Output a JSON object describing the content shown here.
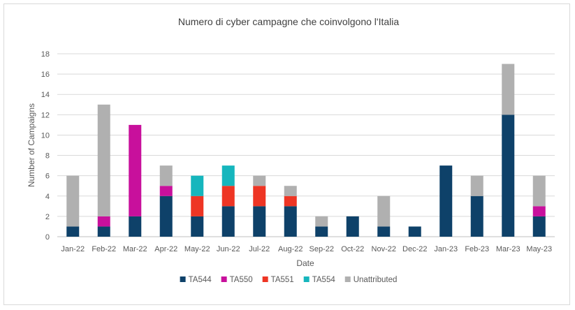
{
  "chart_data": {
    "type": "bar",
    "stacked": true,
    "title": "Numero di cyber campagne che coinvolgono l'Italia",
    "xlabel": "Date",
    "ylabel": "Number of Campaigns",
    "ylim": [
      0,
      18
    ],
    "yticks": [
      0,
      2,
      4,
      6,
      8,
      10,
      12,
      14,
      16,
      18
    ],
    "grid": true,
    "legend_position": "bottom",
    "categories": [
      "Jan-22",
      "Feb-22",
      "Mar-22",
      "Apr-22",
      "May-22",
      "Jun-22",
      "Jul-22",
      "Aug-22",
      "Sep-22",
      "Oct-22",
      "Nov-22",
      "Dec-22",
      "Jan-23",
      "Feb-23",
      "Mar-23",
      "May-23"
    ],
    "series": [
      {
        "name": "TA544",
        "color": "#0e4169",
        "values": [
          1,
          1,
          2,
          4,
          2,
          3,
          3,
          3,
          1,
          2,
          1,
          1,
          7,
          4,
          12,
          2
        ]
      },
      {
        "name": "TA550",
        "color": "#c8109c",
        "values": [
          0,
          1,
          9,
          1,
          0,
          0,
          0,
          0,
          0,
          0,
          0,
          0,
          0,
          0,
          0,
          1
        ]
      },
      {
        "name": "TA551",
        "color": "#ee3524",
        "values": [
          0,
          0,
          0,
          0,
          2,
          2,
          2,
          1,
          0,
          0,
          0,
          0,
          0,
          0,
          0,
          0
        ]
      },
      {
        "name": "TA554",
        "color": "#16b6bd",
        "values": [
          0,
          0,
          0,
          0,
          2,
          2,
          0,
          0,
          0,
          0,
          0,
          0,
          0,
          0,
          0,
          0
        ]
      },
      {
        "name": "Unattributed",
        "color": "#b0b0b0",
        "values": [
          5,
          11,
          0,
          2,
          0,
          0,
          1,
          1,
          1,
          0,
          3,
          0,
          0,
          2,
          5,
          3
        ]
      }
    ]
  }
}
